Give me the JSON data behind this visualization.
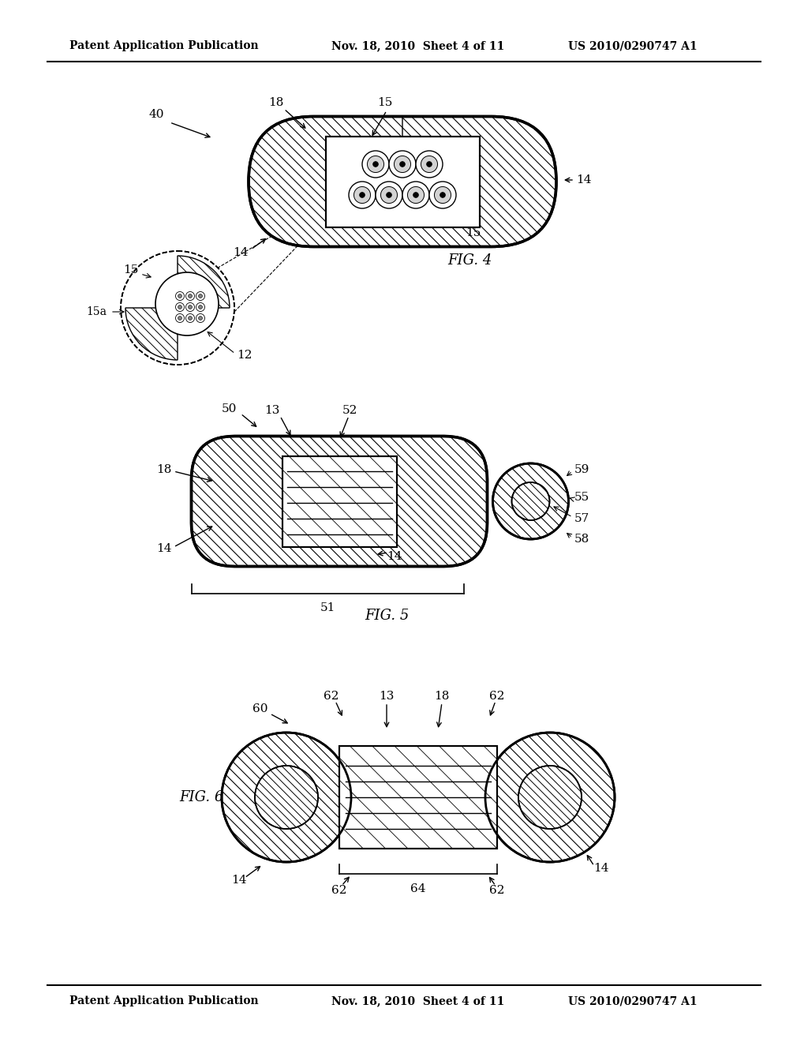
{
  "bg_color": "#ffffff",
  "header_text_left": "Patent Application Publication",
  "header_text_mid": "Nov. 18, 2010  Sheet 4 of 11",
  "header_text_right": "US 2010/0290747 A1",
  "fig_labels": {
    "fig4": "FIG. 4",
    "fig5": "FIG. 5",
    "fig6": "FIG. 6"
  }
}
